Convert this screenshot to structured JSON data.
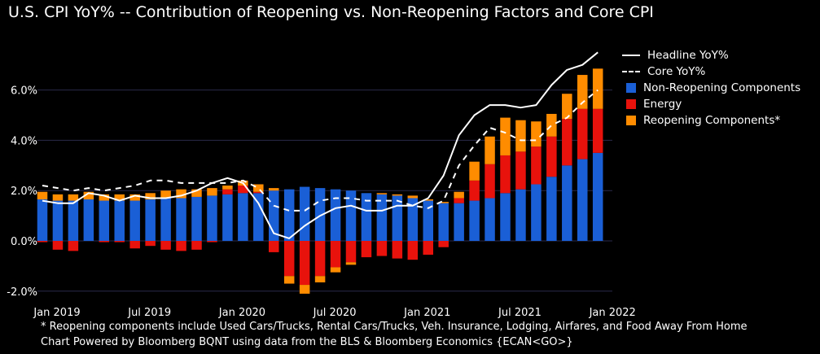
{
  "title": "U.S. CPI YoY% -- Contribution of Reopening vs. Non-Reopening Factors and Core CPI",
  "footnotes": [
    "* Reopening components include Used Cars/Trucks, Rental Cars/Trucks, Veh. Insurance, Lodging, Airfares, and Food Away From Home",
    "Chart Powered by Bloomberg BQNT using data from the BLS & Bloomberg Economics     {ECAN<GO>}"
  ],
  "colors": {
    "background": "#000000",
    "non_reopening": "#1a5fd6",
    "energy": "#e8120c",
    "reopening": "#ff8c00",
    "headline": "#ffffff",
    "core": "#ffffff",
    "grid": "#2a2a4a"
  },
  "chart_data": {
    "type": "bar",
    "stacked": true,
    "title": "U.S. CPI YoY% -- Contribution of Reopening vs. Non-Reopening Factors and Core CPI",
    "xlabel": "",
    "ylabel": "",
    "ylim": [
      -2.5,
      7.5
    ],
    "yticks": [
      "-2.0%",
      "0.0%",
      "2.0%",
      "4.0%",
      "6.0%"
    ],
    "ytick_values": [
      -2,
      0,
      2,
      4,
      6
    ],
    "xticks": [
      "Jan 2019",
      "Jul 2019",
      "Jan 2020",
      "Jul 2020",
      "Jan 2021",
      "Jul 2021",
      "Jan 2022"
    ],
    "xtick_index": [
      0,
      6,
      12,
      18,
      24,
      30,
      36
    ],
    "grid": true,
    "legend_position": "right",
    "categories": [
      "Jan 2019",
      "Feb 2019",
      "Mar 2019",
      "Apr 2019",
      "May 2019",
      "Jun 2019",
      "Jul 2019",
      "Aug 2019",
      "Sep 2019",
      "Oct 2019",
      "Nov 2019",
      "Dec 2019",
      "Jan 2020",
      "Feb 2020",
      "Mar 2020",
      "Apr 2020",
      "May 2020",
      "Jun 2020",
      "Jul 2020",
      "Aug 2020",
      "Sep 2020",
      "Oct 2020",
      "Nov 2020",
      "Dec 2020",
      "Jan 2021",
      "Feb 2021",
      "Mar 2021",
      "Apr 2021",
      "May 2021",
      "Jun 2021",
      "Jul 2021",
      "Aug 2021",
      "Sep 2021",
      "Oct 2021",
      "Nov 2021",
      "Dec 2021",
      "Jan 2022"
    ],
    "series": [
      {
        "name": "Non-Reopening Components",
        "kind": "bar",
        "values": [
          1.65,
          1.6,
          1.6,
          1.65,
          1.6,
          1.6,
          1.6,
          1.65,
          1.7,
          1.7,
          1.75,
          1.8,
          1.85,
          1.9,
          1.9,
          2.0,
          2.05,
          2.15,
          2.1,
          2.05,
          2.0,
          1.9,
          1.85,
          1.8,
          1.7,
          1.6,
          1.5,
          1.5,
          1.6,
          1.7,
          1.9,
          2.05,
          2.25,
          2.55,
          3.0,
          3.25,
          3.5
        ]
      },
      {
        "name": "Energy",
        "kind": "bar",
        "values": [
          -0.05,
          -0.35,
          -0.4,
          0.0,
          -0.05,
          -0.05,
          -0.3,
          -0.2,
          -0.35,
          -0.4,
          -0.35,
          -0.05,
          0.2,
          0.3,
          0.05,
          -0.45,
          -1.4,
          -1.75,
          -1.4,
          -1.05,
          -0.85,
          -0.65,
          -0.6,
          -0.7,
          -0.75,
          -0.55,
          -0.25,
          0.2,
          0.8,
          1.35,
          1.5,
          1.5,
          1.5,
          1.6,
          1.85,
          2.0,
          1.75
        ]
      },
      {
        "name": "Reopening Components*",
        "kind": "bar",
        "values": [
          0.3,
          0.25,
          0.25,
          0.3,
          0.25,
          0.25,
          0.25,
          0.25,
          0.3,
          0.35,
          0.3,
          0.3,
          0.15,
          0.2,
          0.3,
          0.1,
          -0.3,
          -0.35,
          -0.25,
          -0.2,
          -0.1,
          0.0,
          0.05,
          0.05,
          0.1,
          0.05,
          0.05,
          0.25,
          0.75,
          1.1,
          1.5,
          1.25,
          1.0,
          0.9,
          1.0,
          1.35,
          1.6
        ]
      },
      {
        "name": "Headline YoY%",
        "kind": "line",
        "style": "solid",
        "values": [
          1.6,
          1.5,
          1.5,
          1.9,
          1.8,
          1.6,
          1.8,
          1.7,
          1.7,
          1.8,
          2.0,
          2.3,
          2.5,
          2.3,
          1.5,
          0.3,
          0.1,
          0.6,
          1.0,
          1.3,
          1.4,
          1.2,
          1.2,
          1.4,
          1.4,
          1.7,
          2.6,
          4.2,
          5.0,
          5.4,
          5.4,
          5.3,
          5.4,
          6.2,
          6.8,
          7.0,
          7.5
        ]
      },
      {
        "name": "Core YoY%",
        "kind": "line",
        "style": "dashed",
        "values": [
          2.2,
          2.1,
          2.0,
          2.1,
          2.0,
          2.1,
          2.2,
          2.4,
          2.4,
          2.3,
          2.3,
          2.3,
          2.3,
          2.4,
          2.1,
          1.4,
          1.2,
          1.2,
          1.6,
          1.7,
          1.7,
          1.6,
          1.6,
          1.6,
          1.4,
          1.3,
          1.6,
          3.0,
          3.8,
          4.5,
          4.3,
          4.0,
          4.0,
          4.6,
          4.9,
          5.5,
          6.0
        ]
      }
    ]
  }
}
